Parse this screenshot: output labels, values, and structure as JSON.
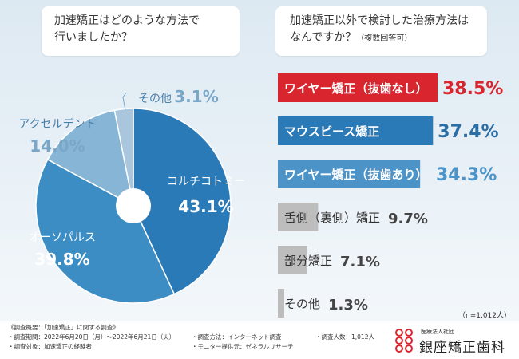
{
  "colors": {
    "pie": [
      "#2b7ab8",
      "#3c8dc4",
      "#86b5d6",
      "#a9c6dc"
    ],
    "pie_text_dark": "#ffffff",
    "bar_red": "#d9252e",
    "bar_blue": "#2b7ab8",
    "bar_lightblue": "#4c93c8",
    "bar_gray": "#bdbdbd",
    "value_red": "#d9252e",
    "value_blue": "#2b6ea6",
    "value_lightblue": "#4c93c8",
    "value_gray": "#444444"
  },
  "questions": {
    "q1": {
      "line1": "加速矯正はどのような方法で",
      "line2": "行いましたか？"
    },
    "q2": {
      "line1": "加速矯正以外で検討した治療方法は",
      "line2": "なんですか？",
      "note": "（複数回答可）"
    }
  },
  "chart_data": [
    {
      "type": "pie",
      "title": "加速矯正はどのような方法で行いましたか？",
      "categories": [
        "コルチコトミー",
        "オーソパルス",
        "アクセルデント",
        "その他"
      ],
      "values": [
        43.1,
        39.8,
        14.0,
        3.1
      ],
      "labels": [
        "43.1%",
        "39.8%",
        "14.0%",
        "3.1%"
      ]
    },
    {
      "type": "bar",
      "orientation": "horizontal",
      "title": "加速矯正以外で検討した治療方法はなんですか？（複数回答可）",
      "categories": [
        "ワイヤー矯正（抜歯なし）",
        "マウスピース矯正",
        "ワイヤー矯正（抜歯あり）",
        "舌側（裏側）矯正",
        "部分矯正",
        "その他"
      ],
      "values": [
        38.5,
        37.4,
        34.3,
        9.7,
        7.1,
        1.3
      ],
      "labels": [
        "38.5%",
        "37.4%",
        "34.3%",
        "9.7%",
        "7.1%",
        "1.3%"
      ],
      "n_label": "（n=1,012人）"
    }
  ],
  "footer": {
    "title": "《調査概要：「加速矯正」に関する調査》",
    "period": "・調査期間：2022年6月20日（月）〜2022年6月21日（火）",
    "target": "・調査対象：加速矯正の経験者",
    "method": "・調査方法：インターネット調査",
    "provider": "・モニター提供元：ゼネラルリサーチ",
    "count": "・調査人数：1,012人",
    "logo_sub": "医療法人社団",
    "logo_name": "銀座矯正歯科"
  }
}
